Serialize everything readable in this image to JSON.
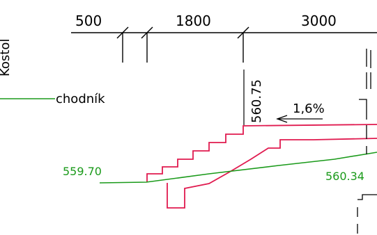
{
  "drawing": {
    "dimensions": [
      "500",
      "1800",
      "3000"
    ],
    "labels": {
      "edge_label": "Kostol",
      "path_label": "chodník",
      "elevation_top": "560.75",
      "slope": "1,6%",
      "elevation_left": "559.70",
      "elevation_right": "560.34"
    },
    "colors": {
      "ground_line": "#1a9a1a",
      "stairs_outline": "#e01a4f",
      "dimension_lines": "#000000",
      "elevation_green_text": "#1a9a1a"
    }
  }
}
